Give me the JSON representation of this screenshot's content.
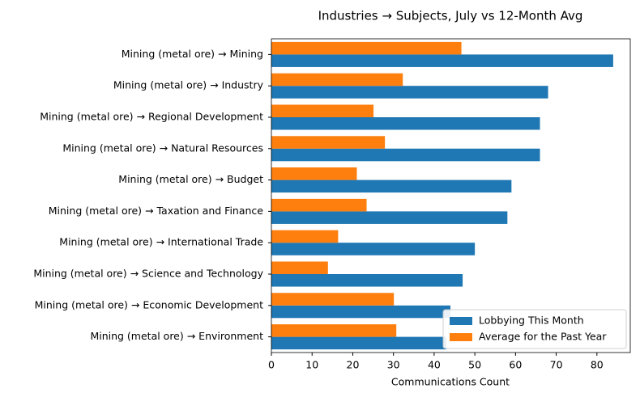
{
  "chart_data": {
    "type": "barh",
    "title": "Industries → Subjects, July vs 12-Month Avg",
    "xlabel": "Communications Count",
    "categories": [
      "Mining (metal ore) → Mining",
      "Mining (metal ore) → Industry",
      "Mining (metal ore) → Regional Development",
      "Mining (metal ore) → Natural Resources",
      "Mining (metal ore) → Budget",
      "Mining (metal ore) → Taxation and Finance",
      "Mining (metal ore) → International Trade",
      "Mining (metal ore) → Science and Technology",
      "Mining (metal ore) → Economic Development",
      "Mining (metal ore) → Environment"
    ],
    "series": [
      {
        "name": "Lobbying This Month",
        "color": "#1f77b4",
        "values": [
          84,
          68,
          66,
          66,
          59,
          58,
          50,
          47,
          44,
          43
        ]
      },
      {
        "name": "Average for the Past Year",
        "color": "#ff7f0e",
        "values": [
          46.7,
          32.3,
          25.1,
          27.9,
          21,
          23.4,
          16.4,
          13.9,
          30.1,
          30.7
        ]
      }
    ],
    "xlim": [
      0,
      88.2
    ],
    "xticks": [
      0,
      10,
      20,
      30,
      40,
      50,
      60,
      70,
      80
    ],
    "legend": "lower right"
  }
}
